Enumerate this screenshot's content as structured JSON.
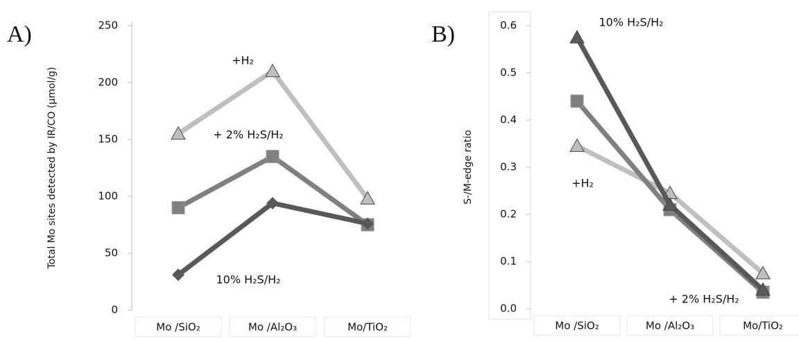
{
  "chart_data": [
    {
      "type": "line",
      "panel_label": "A)",
      "ylabel": "Total Mo sites detected by IR/CO (µmol/g)",
      "categories": [
        "Mo /SiO₂",
        "Mo /Al₂O₃",
        "Mo/TiO₂"
      ],
      "ylim": [
        0,
        250
      ],
      "yticks": [
        0,
        50,
        100,
        150,
        200,
        250
      ],
      "series": [
        {
          "name": "+H₂",
          "color": "#bfbfbf",
          "marker": "triangle",
          "values": [
            155,
            210,
            98
          ]
        },
        {
          "name": "+ 2% H₂S/H₂",
          "color": "#808080",
          "marker": "square",
          "values": [
            90,
            135,
            75
          ]
        },
        {
          "name": "10% H₂S/H₂",
          "color": "#595959",
          "marker": "diamond",
          "values": [
            31,
            94,
            76
          ]
        }
      ]
    },
    {
      "type": "line",
      "panel_label": "B)",
      "ylabel": "S-/M-edge ratio",
      "categories": [
        "Mo /SiO₂",
        "Mo /Al₂O₃",
        "Mo/TiO₂"
      ],
      "ylim": [
        0,
        0.6
      ],
      "yticks": [
        {
          "value": 0,
          "label": "0.0"
        },
        0.1,
        0.2,
        0.3,
        0.4,
        0.5,
        0.6
      ],
      "series": [
        {
          "name": "+H₂",
          "color": "#bfbfbf",
          "marker": "triangle",
          "values": [
            0.345,
            0.245,
            0.075
          ]
        },
        {
          "name": "+ 2% H₂S/H₂",
          "color": "#808080",
          "marker": "square",
          "values": [
            0.44,
            0.21,
            0.035
          ]
        },
        {
          "name": "10% H₂S/H₂",
          "color": "#595959",
          "marker": "triangle",
          "values": [
            0.575,
            0.22,
            0.04
          ]
        }
      ]
    }
  ]
}
